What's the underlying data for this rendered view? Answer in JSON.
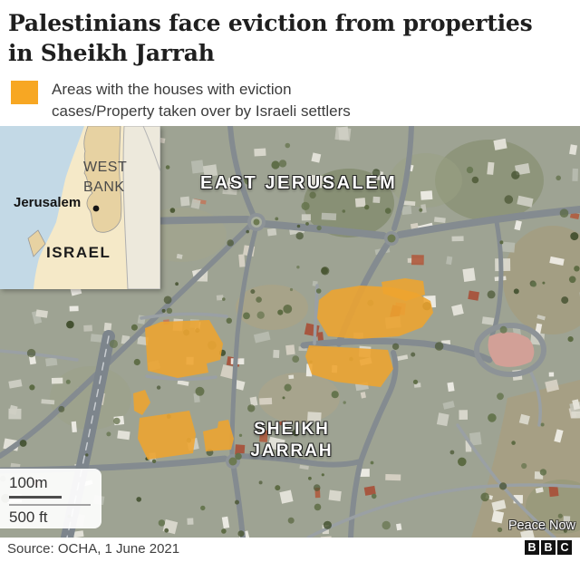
{
  "header": {
    "title_line1": "Palestinians face eviction from properties",
    "title_line2": "in Sheikh Jarrah"
  },
  "legend": {
    "swatch_color": "#F7A723",
    "line1": "Areas with the houses with eviction",
    "line2": "cases/Property taken over by Israeli settlers"
  },
  "map": {
    "highlight_color": "#EEA42F",
    "label_east_jerusalem": "EAST JERUSALEM",
    "sheikh_jarrah_line1": "SHEIKH",
    "sheikh_jarrah_line2": "JARRAH",
    "credit": "Peace Now",
    "scale": {
      "metric": "100m",
      "imperial": "500 ft"
    },
    "inset": {
      "west_bank_line1": "WEST",
      "west_bank_line2": "BANK",
      "jerusalem": "Jerusalem",
      "israel": "ISRAEL",
      "colors": {
        "sea": "#c3d9e6",
        "israel_land": "#f5e9c8",
        "west_bank": "#e7d2a2",
        "jordan": "#ede9dc"
      }
    }
  },
  "footer": {
    "source": "Source: OCHA, 1 June 2021",
    "logo": [
      "B",
      "B",
      "C"
    ]
  }
}
